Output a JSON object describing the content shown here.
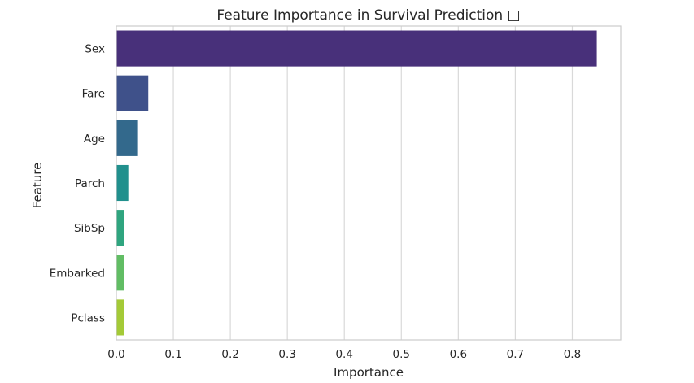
{
  "chart_data": {
    "type": "bar",
    "orientation": "horizontal",
    "title": "Feature Importance in Survival Prediction □",
    "xlabel": "Importance",
    "ylabel": "Feature",
    "categories": [
      "Sex",
      "Fare",
      "Age",
      "Parch",
      "SibSp",
      "Embarked",
      "Pclass"
    ],
    "values": [
      0.843,
      0.056,
      0.038,
      0.021,
      0.014,
      0.013,
      0.013
    ],
    "colors": [
      "#48307a",
      "#3f518a",
      "#33698c",
      "#21908d",
      "#2fa57f",
      "#61bd64",
      "#a4ca37"
    ],
    "xlim": [
      0,
      0.885
    ],
    "xticks": [
      "0.0",
      "0.1",
      "0.2",
      "0.3",
      "0.4",
      "0.5",
      "0.6",
      "0.7",
      "0.8"
    ],
    "xtick_values": [
      0,
      0.1,
      0.2,
      0.3,
      0.4,
      0.5,
      0.6,
      0.7,
      0.8
    ],
    "grid": "vertical",
    "legend": "none"
  }
}
